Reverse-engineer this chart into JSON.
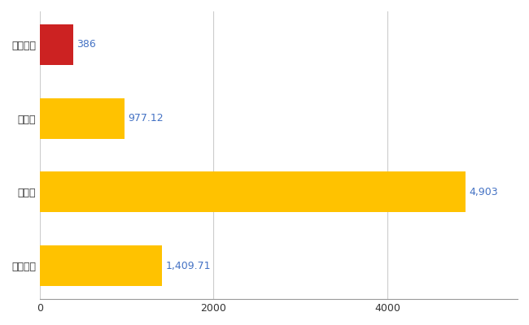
{
  "categories": [
    "輪之内町",
    "県平均",
    "県最大",
    "全国平均"
  ],
  "values": [
    386,
    977.12,
    4903,
    1409.71
  ],
  "bar_colors": [
    "#CC2222",
    "#FFC200",
    "#FFC200",
    "#FFC200"
  ],
  "labels": [
    "386",
    "977.12",
    "4,903",
    "1,409.71"
  ],
  "xlim": [
    0,
    5500
  ],
  "xticks": [
    0,
    2000,
    4000
  ],
  "background_color": "#FFFFFF",
  "grid_color": "#CCCCCC",
  "label_color": "#4472C4",
  "bar_height": 0.55,
  "label_fontsize": 9,
  "tick_fontsize": 9,
  "figsize": [
    6.5,
    4.0
  ],
  "dpi": 100
}
